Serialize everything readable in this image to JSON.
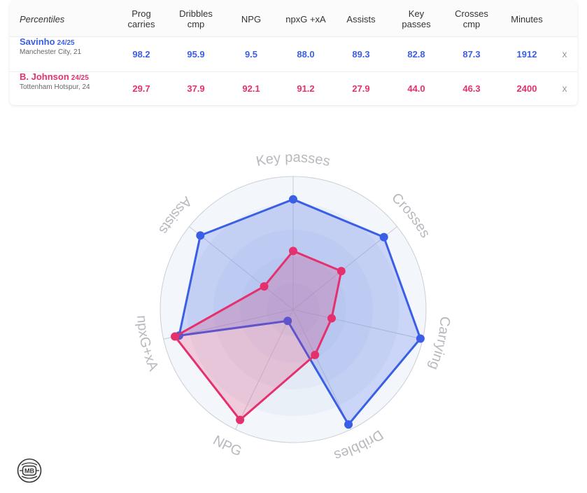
{
  "table": {
    "header_label": "Percentiles",
    "columns": [
      "Prog\ncarries",
      "Dribbles\ncmp",
      "NPG",
      "npxG +xA",
      "Assists",
      "Key\npasses",
      "Crosses\ncmp",
      "Minutes"
    ],
    "close_symbol": "x",
    "players": [
      {
        "name": "Savinho",
        "season": "24/25",
        "club": "Manchester City, 21",
        "color": "#3b5ee6",
        "values": [
          "98.2",
          "95.9",
          "9.5",
          "88.0",
          "89.3",
          "82.8",
          "87.3",
          "1912"
        ]
      },
      {
        "name": "B. Johnson",
        "season": "24/25",
        "club": "Tottenham Hotspur, 24",
        "color": "#e5306e",
        "values": [
          "29.7",
          "37.9",
          "92.1",
          "91.2",
          "27.9",
          "44.0",
          "46.3",
          "2400"
        ]
      }
    ]
  },
  "chart_data": {
    "type": "radar",
    "axes": [
      "Key passes",
      "Crosses",
      "Carrying",
      "Dribbles",
      "NPG",
      "npxG+xA",
      "Assists"
    ],
    "range": [
      0,
      100
    ],
    "series": [
      {
        "name": "Savinho",
        "color": "#3b5ee6",
        "values": [
          82.8,
          87.3,
          98.2,
          95.9,
          9.5,
          88.0,
          89.3
        ]
      },
      {
        "name": "B. Johnson",
        "color": "#e5306e",
        "values": [
          44.0,
          46.3,
          29.7,
          37.9,
          92.1,
          91.2,
          27.9
        ]
      }
    ]
  },
  "logo": {
    "text": "MB",
    "icon": "mb-logo-icon"
  }
}
